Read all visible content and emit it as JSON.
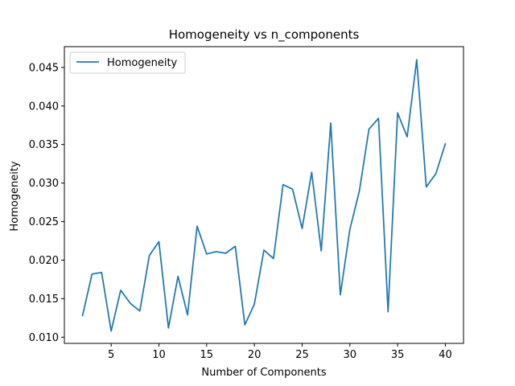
{
  "chart_data": {
    "type": "line",
    "title": "Homogeneity vs n_components",
    "xlabel": "Number of Components",
    "ylabel": "Homogeneity",
    "xlim": [
      0.1,
      41.9
    ],
    "ylim": [
      0.0092,
      0.0477
    ],
    "xticks": [
      5,
      10,
      15,
      20,
      25,
      30,
      35,
      40
    ],
    "yticks": [
      0.01,
      0.015,
      0.02,
      0.025,
      0.03,
      0.035,
      0.04,
      0.045
    ],
    "ytick_labels": [
      "0.010",
      "0.015",
      "0.020",
      "0.025",
      "0.030",
      "0.035",
      "0.040",
      "0.045"
    ],
    "grid": false,
    "legend_position": "top-left",
    "series": [
      {
        "name": "Homogeneity",
        "color": "#1f77b4",
        "x": [
          2,
          3,
          4,
          5,
          6,
          7,
          8,
          9,
          10,
          11,
          12,
          13,
          14,
          15,
          16,
          17,
          18,
          19,
          20,
          21,
          22,
          23,
          24,
          25,
          26,
          27,
          28,
          29,
          30,
          31,
          32,
          33,
          34,
          35,
          36,
          37,
          38,
          39,
          40
        ],
        "y": [
          0.0128,
          0.0182,
          0.0184,
          0.0108,
          0.0161,
          0.0144,
          0.0134,
          0.0206,
          0.0224,
          0.0112,
          0.0179,
          0.0129,
          0.0244,
          0.0208,
          0.0211,
          0.0209,
          0.0218,
          0.0116,
          0.0143,
          0.0213,
          0.0202,
          0.0298,
          0.0292,
          0.0241,
          0.0314,
          0.0212,
          0.0378,
          0.0155,
          0.024,
          0.029,
          0.037,
          0.0384,
          0.0133,
          0.0391,
          0.036,
          0.046,
          0.0295,
          0.0312,
          0.0351
        ]
      }
    ]
  }
}
